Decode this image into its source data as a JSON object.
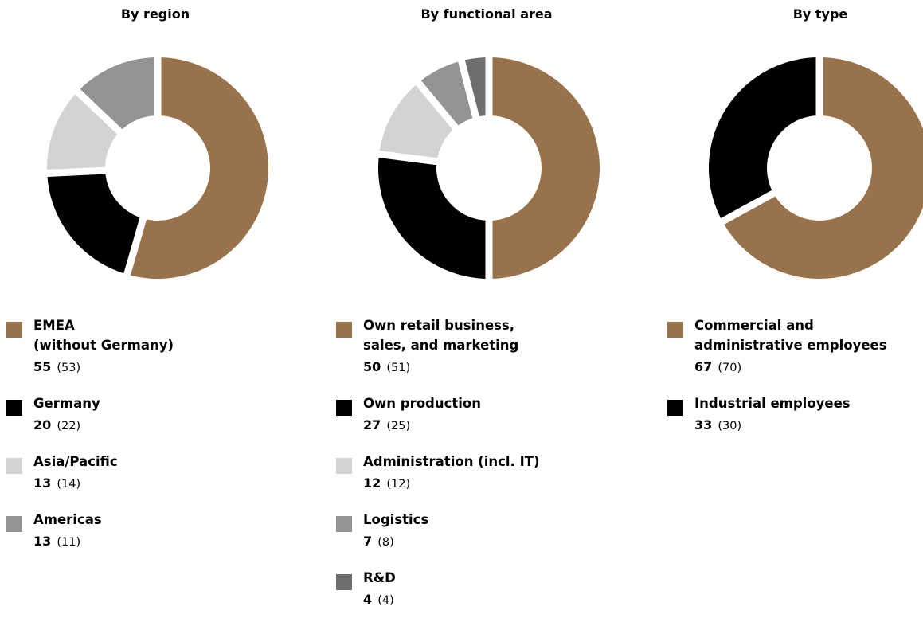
{
  "chart_data": [
    {
      "type": "pie",
      "title": "By region",
      "slices": [
        {
          "label": "EMEA\n(without Germany)",
          "value": 55,
          "prior": "(53)",
          "color": "#98724A"
        },
        {
          "label": "Germany",
          "value": 20,
          "prior": "(22)",
          "color": "#000000"
        },
        {
          "label": "Asia/Pacific",
          "value": 13,
          "prior": "(14)",
          "color": "#D3D3D3"
        },
        {
          "label": "Americas",
          "value": 13,
          "prior": "(11)",
          "color": "#939393"
        }
      ]
    },
    {
      "type": "pie",
      "title": "By functional area",
      "slices": [
        {
          "label": "Own retail business,\nsales, and marketing",
          "value": 50,
          "prior": "(51)",
          "color": "#98724A"
        },
        {
          "label": "Own production",
          "value": 27,
          "prior": "(25)",
          "color": "#000000"
        },
        {
          "label": "Administration (incl. IT)",
          "value": 12,
          "prior": "(12)",
          "color": "#D3D3D3"
        },
        {
          "label": "Logistics",
          "value": 7,
          "prior": "(8)",
          "color": "#939393"
        },
        {
          "label": "R&D",
          "value": 4,
          "prior": "(4)",
          "color": "#6E6E6E"
        }
      ]
    },
    {
      "type": "pie",
      "title": "By type",
      "slices": [
        {
          "label": "Commercial and\nadministrative employees",
          "value": 67,
          "prior": "(70)",
          "color": "#98724A"
        },
        {
          "label": "Industrial employees",
          "value": 33,
          "prior": "(30)",
          "color": "#000000"
        }
      ]
    }
  ]
}
